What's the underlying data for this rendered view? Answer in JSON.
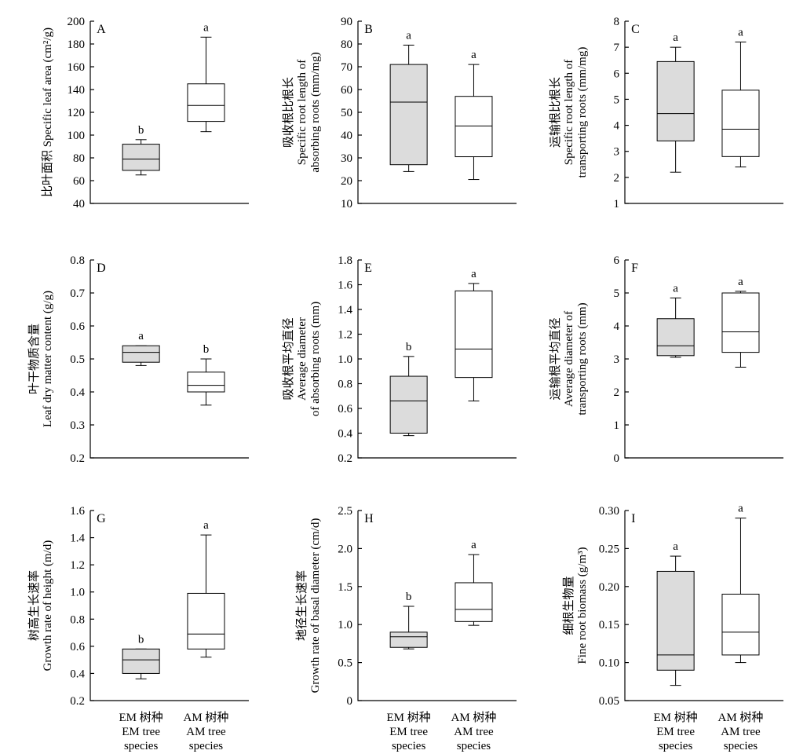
{
  "colors": {
    "em_fill": "#dcdcdc",
    "am_fill": "#ffffff",
    "stroke": "#000000"
  },
  "chart_data": [
    {
      "type": "box",
      "panel": "A",
      "ylabel": [
        "比叶面积 Specific leaf area (cm²/g)"
      ],
      "ylim": [
        40,
        200
      ],
      "yticks": [
        "40",
        "60",
        "80",
        "100",
        "120",
        "140",
        "160",
        "180",
        "200"
      ],
      "categories": [
        "EM 树种 EM tree species",
        "AM 树种 AM tree species"
      ],
      "boxes": [
        {
          "group": "EM",
          "whisker_low": 65,
          "q1": 69,
          "median": 79,
          "q3": 92,
          "whisker_high": 96,
          "letter": "b"
        },
        {
          "group": "AM",
          "whisker_low": 103,
          "q1": 112,
          "median": 126,
          "q3": 145,
          "whisker_high": 186,
          "letter": "a"
        }
      ]
    },
    {
      "type": "box",
      "panel": "B",
      "ylabel": [
        "吸收根比根长",
        "Specific root length of",
        "absorbing roots (mm/mg)"
      ],
      "ylim": [
        10,
        90
      ],
      "yticks": [
        "10",
        "20",
        "30",
        "40",
        "50",
        "60",
        "70",
        "80",
        "90"
      ],
      "categories": [
        "EM 树种 EM tree species",
        "AM 树种 AM tree species"
      ],
      "boxes": [
        {
          "group": "EM",
          "whisker_low": 24,
          "q1": 27,
          "median": 54.5,
          "q3": 71,
          "whisker_high": 79.5,
          "letter": "a"
        },
        {
          "group": "AM",
          "whisker_low": 20.5,
          "q1": 30.5,
          "median": 44,
          "q3": 57,
          "whisker_high": 71,
          "letter": "a"
        }
      ]
    },
    {
      "type": "box",
      "panel": "C",
      "ylabel": [
        "运输根比根长",
        "Specific root length of",
        "transporting roots (mm/mg)"
      ],
      "ylim": [
        1,
        8
      ],
      "yticks": [
        "1",
        "2",
        "3",
        "4",
        "5",
        "6",
        "7",
        "8"
      ],
      "categories": [
        "EM 树种 EM tree species",
        "AM 树种 AM tree species"
      ],
      "boxes": [
        {
          "group": "EM",
          "whisker_low": 2.2,
          "q1": 3.4,
          "median": 4.45,
          "q3": 6.45,
          "whisker_high": 7.0,
          "letter": "a"
        },
        {
          "group": "AM",
          "whisker_low": 2.4,
          "q1": 2.8,
          "median": 3.85,
          "q3": 5.35,
          "whisker_high": 7.2,
          "letter": "a"
        }
      ]
    },
    {
      "type": "box",
      "panel": "D",
      "ylabel": [
        "叶干物质含量",
        "Leaf dry matter content (g/g)"
      ],
      "ylim": [
        0.2,
        0.8
      ],
      "yticks": [
        "0.2",
        "0.3",
        "0.4",
        "0.5",
        "0.6",
        "0.7",
        "0.8"
      ],
      "categories": [
        "EM 树种 EM tree species",
        "AM 树种 AM tree species"
      ],
      "boxes": [
        {
          "group": "EM",
          "whisker_low": 0.48,
          "q1": 0.49,
          "median": 0.52,
          "q3": 0.54,
          "whisker_high": 0.54,
          "letter": "a"
        },
        {
          "group": "AM",
          "whisker_low": 0.36,
          "q1": 0.4,
          "median": 0.42,
          "q3": 0.46,
          "whisker_high": 0.5,
          "letter": "b"
        }
      ]
    },
    {
      "type": "box",
      "panel": "E",
      "ylabel": [
        "吸收根平均直径",
        "Average diameter",
        "of absorbing roots (mm)"
      ],
      "ylim": [
        0.2,
        1.8
      ],
      "yticks": [
        "0.2",
        "0.4",
        "0.6",
        "0.8",
        "1.0",
        "1.2",
        "1.4",
        "1.6",
        "1.8"
      ],
      "categories": [
        "EM 树种 EM tree species",
        "AM 树种 AM tree species"
      ],
      "boxes": [
        {
          "group": "EM",
          "whisker_low": 0.38,
          "q1": 0.4,
          "median": 0.66,
          "q3": 0.86,
          "whisker_high": 1.02,
          "letter": "b"
        },
        {
          "group": "AM",
          "whisker_low": 0.66,
          "q1": 0.85,
          "median": 1.08,
          "q3": 1.55,
          "whisker_high": 1.61,
          "letter": "a"
        }
      ]
    },
    {
      "type": "box",
      "panel": "F",
      "ylabel": [
        "运输根平均直径",
        "Average diameter of",
        "transporting roots (mm)"
      ],
      "ylim": [
        0,
        6
      ],
      "yticks": [
        "0",
        "1",
        "2",
        "3",
        "4",
        "5",
        "6"
      ],
      "categories": [
        "EM 树种 EM tree species",
        "AM 树种 AM tree species"
      ],
      "boxes": [
        {
          "group": "EM",
          "whisker_low": 3.05,
          "q1": 3.1,
          "median": 3.4,
          "q3": 4.22,
          "whisker_high": 4.85,
          "letter": "a"
        },
        {
          "group": "AM",
          "whisker_low": 2.75,
          "q1": 3.2,
          "median": 3.82,
          "q3": 5.0,
          "whisker_high": 5.05,
          "letter": "a"
        }
      ]
    },
    {
      "type": "box",
      "panel": "G",
      "ylabel": [
        "树高生长速率",
        "Growth rate of height (m/d)"
      ],
      "ylim": [
        0.2,
        1.6
      ],
      "yticks": [
        "0.2",
        "0.4",
        "0.6",
        "0.8",
        "1.0",
        "1.2",
        "1.4",
        "1.6"
      ],
      "categories": [
        "EM 树种 EM tree species",
        "AM 树种 AM tree species"
      ],
      "boxes": [
        {
          "group": "EM",
          "whisker_low": 0.36,
          "q1": 0.4,
          "median": 0.5,
          "q3": 0.58,
          "whisker_high": 0.58,
          "letter": "b"
        },
        {
          "group": "AM",
          "whisker_low": 0.52,
          "q1": 0.58,
          "median": 0.69,
          "q3": 0.99,
          "whisker_high": 1.42,
          "letter": "a"
        }
      ]
    },
    {
      "type": "box",
      "panel": "H",
      "ylabel": [
        "地径生长速率",
        "Growth rate of basal diameter (cm/d)"
      ],
      "ylim": [
        0,
        2.5
      ],
      "yticks": [
        "0",
        "0.5",
        "1.0",
        "1.5",
        "2.0",
        "2.5"
      ],
      "categories": [
        "EM 树种 EM tree species",
        "AM 树种 AM tree species"
      ],
      "boxes": [
        {
          "group": "EM",
          "whisker_low": 0.68,
          "q1": 0.7,
          "median": 0.84,
          "q3": 0.9,
          "whisker_high": 1.24,
          "letter": "b"
        },
        {
          "group": "AM",
          "whisker_low": 0.99,
          "q1": 1.04,
          "median": 1.2,
          "q3": 1.55,
          "whisker_high": 1.92,
          "letter": "a"
        }
      ]
    },
    {
      "type": "box",
      "panel": "I",
      "ylabel": [
        "细根生物量",
        "Fine root biomass (g/m³)"
      ],
      "ylim": [
        0.05,
        0.3
      ],
      "yticks": [
        "0.05",
        "0.10",
        "0.15",
        "0.20",
        "0.25",
        "0.30"
      ],
      "categories": [
        "EM 树种 EM tree species",
        "AM 树种 AM tree species"
      ],
      "boxes": [
        {
          "group": "EM",
          "whisker_low": 0.07,
          "q1": 0.09,
          "median": 0.11,
          "q3": 0.22,
          "whisker_high": 0.24,
          "letter": "a"
        },
        {
          "group": "AM",
          "whisker_low": 0.1,
          "q1": 0.11,
          "median": 0.14,
          "q3": 0.19,
          "whisker_high": 0.29,
          "letter": "a"
        }
      ]
    }
  ],
  "group_labels": {
    "em": [
      "EM 树种",
      "EM tree",
      "species"
    ],
    "am": [
      "AM 树种",
      "AM tree",
      "species"
    ]
  }
}
